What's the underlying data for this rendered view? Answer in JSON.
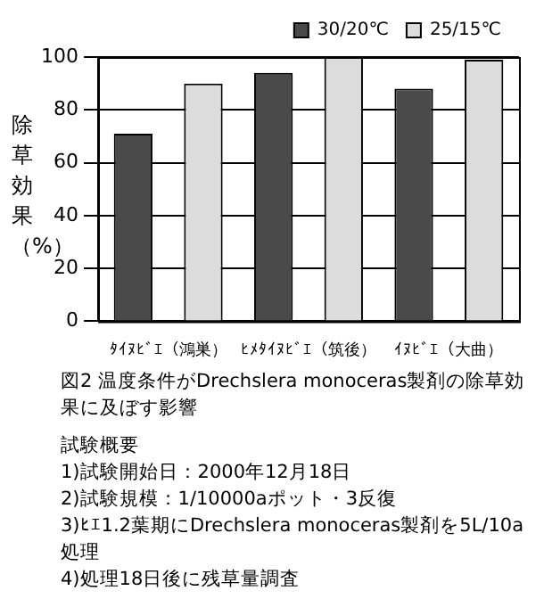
{
  "chart_data": {
    "type": "bar",
    "ylabel": "除草効果（%）",
    "categories": [
      "ﾀｲﾇﾋﾞｴ（鴻巣）",
      "ﾋﾒﾀｲﾇﾋﾞｴ（筑後）",
      "ｲﾇﾋﾞｴ（大曲）"
    ],
    "series": [
      {
        "name": "30/20℃",
        "color": "#4a4a4a",
        "values": [
          71,
          94,
          88
        ]
      },
      {
        "name": "25/15℃",
        "color": "#dcdcdc",
        "values": [
          90,
          100,
          99
        ]
      }
    ],
    "ylim": [
      0,
      100
    ],
    "yticks": [
      0,
      20,
      40,
      60,
      80,
      100
    ],
    "grid": "y",
    "legend": "top right",
    "annotations": [
      "図2 温度条件がDrechslera monoceras製剤の除草効果に及ぼす影響",
      "試験概要",
      "1)試験開始日：2000年12月18日",
      "2)試験規模：1/10000aポット・3反復",
      "3)ﾋｴ1.2葉期にDrechslera monoceras製剤を5L/10a処理",
      "4)処理18日後に残草量調査"
    ]
  }
}
